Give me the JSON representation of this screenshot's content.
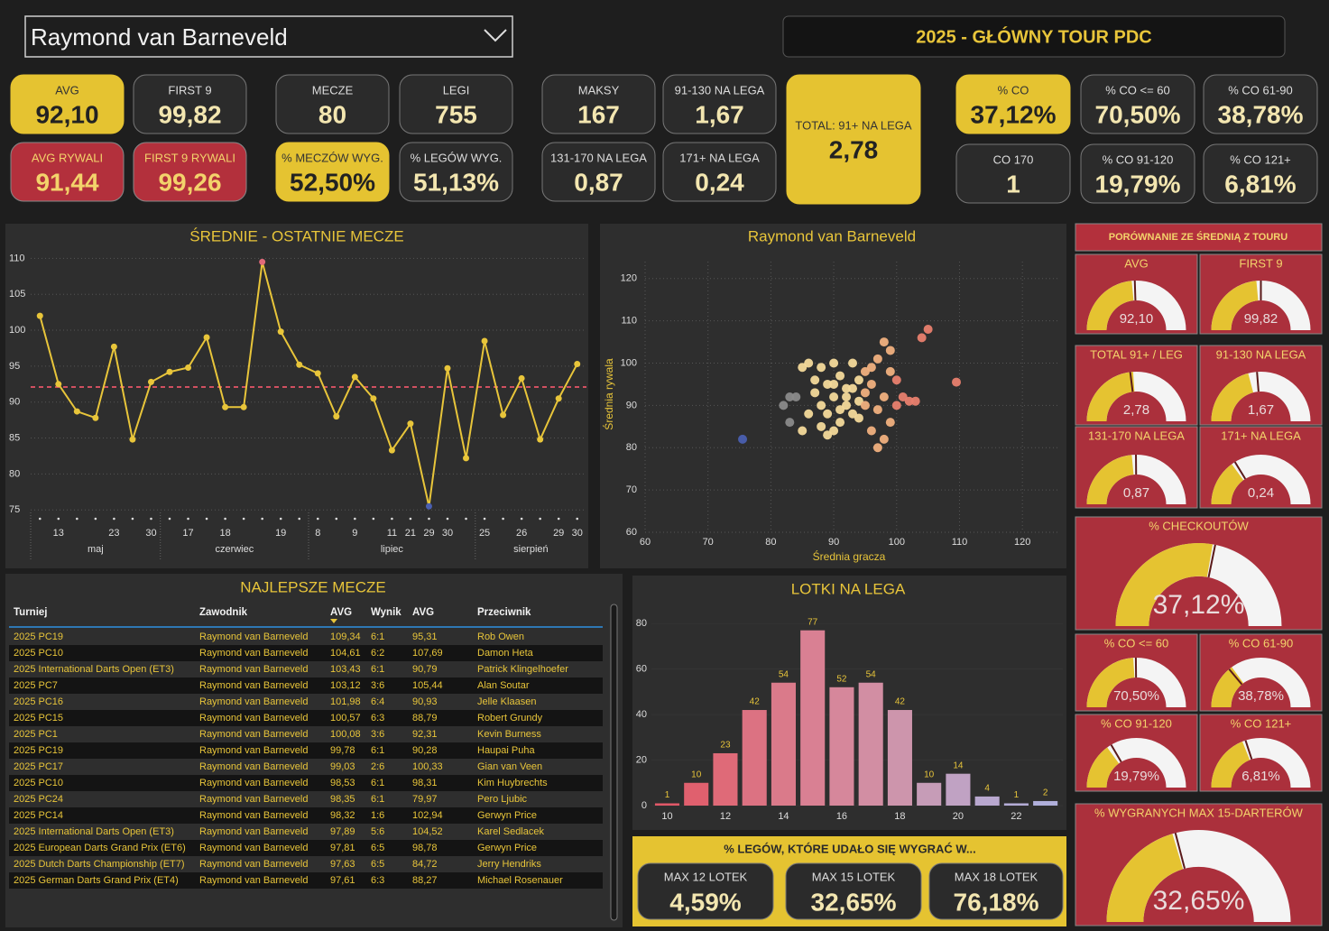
{
  "header": {
    "player": "Raymond van Barneveld",
    "title": "2025 - GŁÓWNY TOUR PDC"
  },
  "kpis": [
    {
      "label": "AVG",
      "value": "92,10",
      "style": "yellow"
    },
    {
      "label": "FIRST 9",
      "value": "99,82",
      "style": "dark"
    },
    {
      "label": "AVG RYWALI",
      "value": "91,44",
      "style": "red"
    },
    {
      "label": "FIRST 9 RYWALI",
      "value": "99,26",
      "style": "red"
    },
    {
      "label": "MECZE",
      "value": 80,
      "style": "dark"
    },
    {
      "label": "LEGI",
      "value": 755,
      "style": "dark"
    },
    {
      "label": "% MECZÓW WYG.",
      "value": "52,50%",
      "style": "yellow"
    },
    {
      "label": "% LEGÓW WYG.",
      "value": "51,13%",
      "style": "dark"
    },
    {
      "label": "MAKSY",
      "value": 167,
      "style": "dark"
    },
    {
      "label": "91-130 NA LEGA",
      "value": "1,67",
      "style": "dark"
    },
    {
      "label": "131-170 NA LEGA",
      "value": "0,87",
      "style": "dark"
    },
    {
      "label": "171+ NA LEGA",
      "value": "0,24",
      "style": "dark"
    },
    {
      "label": "TOTAL: 91+ NA LEGA",
      "value": "2,78",
      "style": "yellow"
    },
    {
      "label": "% CO",
      "value": "37,12%",
      "style": "yellow"
    },
    {
      "label": "% CO <= 60",
      "value": "70,50%",
      "style": "dark"
    },
    {
      "label": "% CO 61-90",
      "value": "38,78%",
      "style": "dark"
    },
    {
      "label": "CO 170",
      "value": 1,
      "style": "dark"
    },
    {
      "label": "% CO 91-120",
      "value": "19,79%",
      "style": "dark"
    },
    {
      "label": "% CO 121+",
      "value": "6,81%",
      "style": "dark"
    }
  ],
  "line_chart": {
    "type": "line",
    "title": "ŚREDNIE - OSTATNIE MECZE",
    "color": "#e8c53a",
    "categories": [
      null,
      "13",
      null,
      null,
      "23",
      null,
      "30",
      null,
      "17",
      null,
      "18",
      null,
      null,
      "19",
      null,
      "8",
      null,
      "9",
      null,
      "11",
      "21",
      "29",
      "30",
      null,
      "25",
      null,
      "26",
      null,
      "29",
      "30"
    ],
    "months": [
      "maj",
      "czerwiec",
      "lipiec",
      "sierpień"
    ],
    "month_of": [
      0,
      0,
      0,
      0,
      0,
      0,
      0,
      1,
      1,
      1,
      1,
      1,
      1,
      1,
      1,
      2,
      2,
      2,
      2,
      2,
      2,
      2,
      2,
      2,
      3,
      3,
      3,
      3,
      3,
      3
    ],
    "values": [
      102,
      92.5,
      88.7,
      87.8,
      97.7,
      84.8,
      92.8,
      94.2,
      94.8,
      99,
      89.3,
      89.3,
      109.5,
      99.8,
      95.2,
      94,
      88,
      93.5,
      90.5,
      83.3,
      87,
      75.5,
      94.7,
      82.2,
      98.5,
      88.2,
      93.3,
      84.8,
      90.5,
      95.3
    ],
    "reference": 92.1,
    "ylim": [
      74.4,
      110.8
    ],
    "yticks": [
      75,
      80,
      85,
      90,
      95,
      100,
      105,
      110
    ],
    "grid": true
  },
  "scatter": {
    "type": "scatter",
    "title": "Raymond van Barneveld",
    "x_label": "Średnia gracza",
    "y_label": "Średnia rywala",
    "x": [
      75.5,
      109.5,
      105,
      104,
      99,
      98,
      96,
      97,
      95,
      94,
      93,
      92,
      91,
      90,
      89,
      88,
      87,
      86,
      85,
      84,
      83,
      82,
      83,
      85,
      86,
      88,
      89,
      90,
      91,
      92,
      93,
      94,
      95,
      96,
      97,
      98,
      99,
      100,
      101,
      102,
      103,
      98,
      97,
      96,
      100,
      99,
      90,
      88,
      87,
      92,
      91,
      89,
      94,
      95,
      93,
      90
    ],
    "y": [
      82,
      95.5,
      108,
      106,
      103,
      105,
      99,
      101,
      98,
      96,
      100,
      94,
      97,
      92,
      95,
      90,
      93,
      100,
      99,
      92,
      92,
      90,
      86,
      84,
      88,
      85,
      83,
      84,
      86,
      90,
      88,
      91,
      93,
      95,
      89,
      92,
      86,
      90,
      92,
      91,
      91,
      82,
      80,
      84,
      96,
      98,
      100,
      99,
      96,
      92,
      89,
      88,
      87,
      90,
      94,
      95
    ],
    "xlim": [
      60,
      126
    ],
    "ylim": [
      60,
      124
    ],
    "xticks": [
      60,
      70,
      80,
      90,
      100,
      110,
      120
    ],
    "yticks": [
      60,
      70,
      80,
      90,
      100,
      110,
      120
    ],
    "grid": true
  },
  "table": {
    "title": "NAJLEPSZE MECZE",
    "columns": [
      "Turniej",
      "Zawodnik",
      "AVG",
      "Wynik",
      "AVG",
      "Przeciwnik"
    ],
    "rows": [
      [
        "2025 PC19",
        "Raymond van Barneveld",
        "109,34",
        "6:1",
        "95,31",
        "Rob Owen"
      ],
      [
        "2025 PC10",
        "Raymond van Barneveld",
        "104,61",
        "6:2",
        "107,69",
        "Damon Heta"
      ],
      [
        "2025 International Darts Open (ET3)",
        "Raymond van Barneveld",
        "103,43",
        "6:1",
        "90,79",
        "Patrick Klingelhoefer"
      ],
      [
        "2025 PC7",
        "Raymond van Barneveld",
        "103,12",
        "3:6",
        "105,44",
        "Alan Soutar"
      ],
      [
        "2025 PC16",
        "Raymond van Barneveld",
        "101,98",
        "6:4",
        "90,93",
        "Jelle Klaasen"
      ],
      [
        "2025 PC15",
        "Raymond van Barneveld",
        "100,57",
        "6:3",
        "88,79",
        "Robert Grundy"
      ],
      [
        "2025 PC1",
        "Raymond van Barneveld",
        "100,08",
        "3:6",
        "92,31",
        "Kevin Burness"
      ],
      [
        "2025 PC19",
        "Raymond van Barneveld",
        "99,78",
        "6:1",
        "90,28",
        "Haupai Puha"
      ],
      [
        "2025 PC17",
        "Raymond van Barneveld",
        "99,03",
        "2:6",
        "100,33",
        "Gian van Veen"
      ],
      [
        "2025 PC10",
        "Raymond van Barneveld",
        "98,53",
        "6:1",
        "98,31",
        "Kim Huybrechts"
      ],
      [
        "2025 PC24",
        "Raymond van Barneveld",
        "98,35",
        "6:1",
        "79,97",
        "Pero Ljubic"
      ],
      [
        "2025 PC14",
        "Raymond van Barneveld",
        "98,32",
        "1:6",
        "102,94",
        "Gerwyn Price"
      ],
      [
        "2025 International Darts Open (ET3)",
        "Raymond van Barneveld",
        "97,89",
        "5:6",
        "104,52",
        "Karel Sedlacek"
      ],
      [
        "2025 European Darts Grand Prix (ET6)",
        "Raymond van Barneveld",
        "97,81",
        "6:5",
        "98,78",
        "Gerwyn Price"
      ],
      [
        "2025 Dutch Darts Championship (ET7)",
        "Raymond van Barneveld",
        "97,63",
        "6:5",
        "84,72",
        "Jerry Hendriks"
      ],
      [
        "2025 German Darts Grand Prix (ET4)",
        "Raymond van Barneveld",
        "97,61",
        "6:3",
        "88,27",
        "Michael Rosenauer"
      ]
    ]
  },
  "bar_chart": {
    "type": "bar",
    "title": "LOTKI NA LEGA",
    "x": [
      10,
      11,
      12,
      13,
      14,
      15,
      16,
      17,
      18,
      19,
      20,
      21,
      22,
      23
    ],
    "values": [
      1,
      10,
      23,
      42,
      54,
      77,
      52,
      54,
      42,
      10,
      14,
      4,
      1,
      2
    ],
    "colors": [
      "#e05868",
      "#e0606e",
      "#df6a78",
      "#dc7282",
      "#da7a8a",
      "#d98093",
      "#d6879b",
      "#d28ea3",
      "#cd95ac",
      "#c69cb7",
      "#c0a2c3",
      "#b9a8cf",
      "#b4acd6",
      "#b0afdb"
    ],
    "xlim": [
      8.9,
      23.6
    ],
    "ylim": [
      0,
      86
    ],
    "xticks": [
      10,
      12,
      14,
      16,
      18,
      20,
      22
    ],
    "yticks": [
      0,
      20,
      40,
      60,
      80
    ]
  },
  "gauges": {
    "title": "PORÓWNANIE ZE ŚREDNIĄ Z TOURU",
    "items": [
      {
        "label": "AVG",
        "value": 92.1,
        "value_label": "92,10",
        "range": [
          0,
          196
        ],
        "target": 96
      },
      {
        "label": "FIRST 9",
        "value": 99.82,
        "value_label": "99,82",
        "range": [
          0,
          212
        ],
        "target": 106
      },
      {
        "label": "TOTAL 91+ / LEG",
        "value": 2.78,
        "value_label": "2,78",
        "range": [
          0,
          5.8
        ],
        "target": 2.67
      },
      {
        "label": "91-130 NA LEGA",
        "value": 1.67,
        "value_label": "1,67",
        "range": [
          0,
          4
        ],
        "target": 1.9
      },
      {
        "label": "131-170 NA LEGA",
        "value": 0.87,
        "value_label": "0,87",
        "range": [
          0,
          1.85
        ],
        "target": 0.92
      },
      {
        "label": "171+ NA LEGA",
        "value": 0.24,
        "value_label": "0,24",
        "range": [
          0,
          0.8
        ],
        "target": 0.26
      },
      {
        "label": "% CHECKOUTÓW",
        "value": 37.12,
        "value_label": "37,12%",
        "range": [
          0,
          67
        ],
        "target": 37.8
      },
      {
        "label": "% CO <= 60",
        "value": 70.5,
        "value_label": "70,50%",
        "range": [
          0,
          147
        ],
        "target": 73
      },
      {
        "label": "% CO 61-90",
        "value": 38.78,
        "value_label": "38,78%",
        "range": [
          0,
          129
        ],
        "target": 36
      },
      {
        "label": "% CO 91-120",
        "value": 19.79,
        "value_label": "19,79%",
        "range": [
          0,
          66
        ],
        "target": 21.8
      },
      {
        "label": "% CO 121+",
        "value": 6.81,
        "value_label": "6,81%",
        "range": [
          0,
          18
        ],
        "target": 7.2
      },
      {
        "label": "% WYGRANYCH MAX 15-DARTERÓW",
        "value": 32.65,
        "value_label": "32,65%",
        "range": [
          0,
          80
        ],
        "target": 33.5
      }
    ]
  },
  "legs_won": {
    "title": "% LEGÓW, KTÓRE UDAŁO SIĘ WYGRAĆ W...",
    "items": [
      {
        "label": "MAX 12 LOTEK",
        "value": "4,59%"
      },
      {
        "label": "MAX 15 LOTEK",
        "value": "32,65%"
      },
      {
        "label": "MAX 18 LOTEK",
        "value": "76,18%"
      }
    ]
  }
}
